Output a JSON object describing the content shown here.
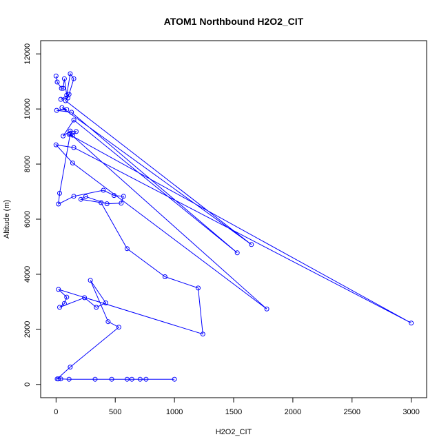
{
  "chart_data": {
    "type": "line",
    "title": "ATOM1 Northbound H2O2_CIT",
    "xlabel": "H2O2_CIT",
    "ylabel": "Altitude (m)",
    "xlim": [
      -130,
      3130
    ],
    "ylim": [
      -480,
      12480
    ],
    "xticks": [
      0,
      500,
      1000,
      1500,
      2000,
      2500,
      3000
    ],
    "yticks": [
      0,
      2000,
      4000,
      6000,
      8000,
      10000,
      12000
    ],
    "grid": false,
    "legend": "none",
    "series": [
      {
        "color": "#0000ff",
        "line": true,
        "markers": "open-circle",
        "points": [
          [
            0,
            11200
          ],
          [
            10,
            10980
          ],
          [
            45,
            10750
          ],
          [
            60,
            10750
          ],
          [
            70,
            11100
          ],
          [
            90,
            10500
          ],
          [
            120,
            11280
          ],
          [
            150,
            11100
          ],
          [
            100,
            10400
          ],
          [
            40,
            10350
          ],
          [
            110,
            10530
          ],
          [
            80,
            10300
          ],
          [
            1650,
            5080
          ],
          [
            50,
            10050
          ],
          [
            90,
            9980
          ],
          [
            5,
            9950
          ],
          [
            130,
            9880
          ],
          [
            1530,
            4780
          ],
          [
            150,
            9600
          ],
          [
            60,
            9020
          ],
          [
            120,
            9200
          ],
          [
            170,
            9180
          ],
          [
            140,
            9050
          ],
          [
            110,
            9080
          ],
          [
            3000,
            2230
          ],
          [
            150,
            8600
          ],
          [
            0,
            8700
          ],
          [
            140,
            8040
          ],
          [
            1780,
            2740
          ],
          [
            120,
            9100
          ],
          [
            30,
            6940
          ],
          [
            20,
            6550
          ],
          [
            150,
            6830
          ],
          [
            400,
            7050
          ],
          [
            490,
            6860
          ],
          [
            570,
            6830
          ],
          [
            550,
            6580
          ],
          [
            430,
            6560
          ],
          [
            250,
            6820
          ],
          [
            210,
            6720
          ],
          [
            380,
            6600
          ],
          [
            600,
            4930
          ],
          [
            920,
            3910
          ],
          [
            1200,
            3500
          ],
          [
            1240,
            1830
          ],
          [
            20,
            3450
          ],
          [
            90,
            3170
          ],
          [
            70,
            2940
          ],
          [
            30,
            2800
          ],
          [
            240,
            3150
          ],
          [
            340,
            2800
          ],
          [
            420,
            2960
          ],
          [
            290,
            3780
          ],
          [
            440,
            2280
          ],
          [
            530,
            2080
          ],
          [
            120,
            630
          ],
          [
            10,
            200
          ],
          [
            20,
            200
          ],
          [
            40,
            200
          ],
          [
            110,
            190
          ],
          [
            330,
            190
          ],
          [
            470,
            190
          ],
          [
            600,
            190
          ],
          [
            640,
            190
          ],
          [
            710,
            190
          ],
          [
            760,
            190
          ],
          [
            1000,
            190
          ]
        ]
      }
    ]
  }
}
